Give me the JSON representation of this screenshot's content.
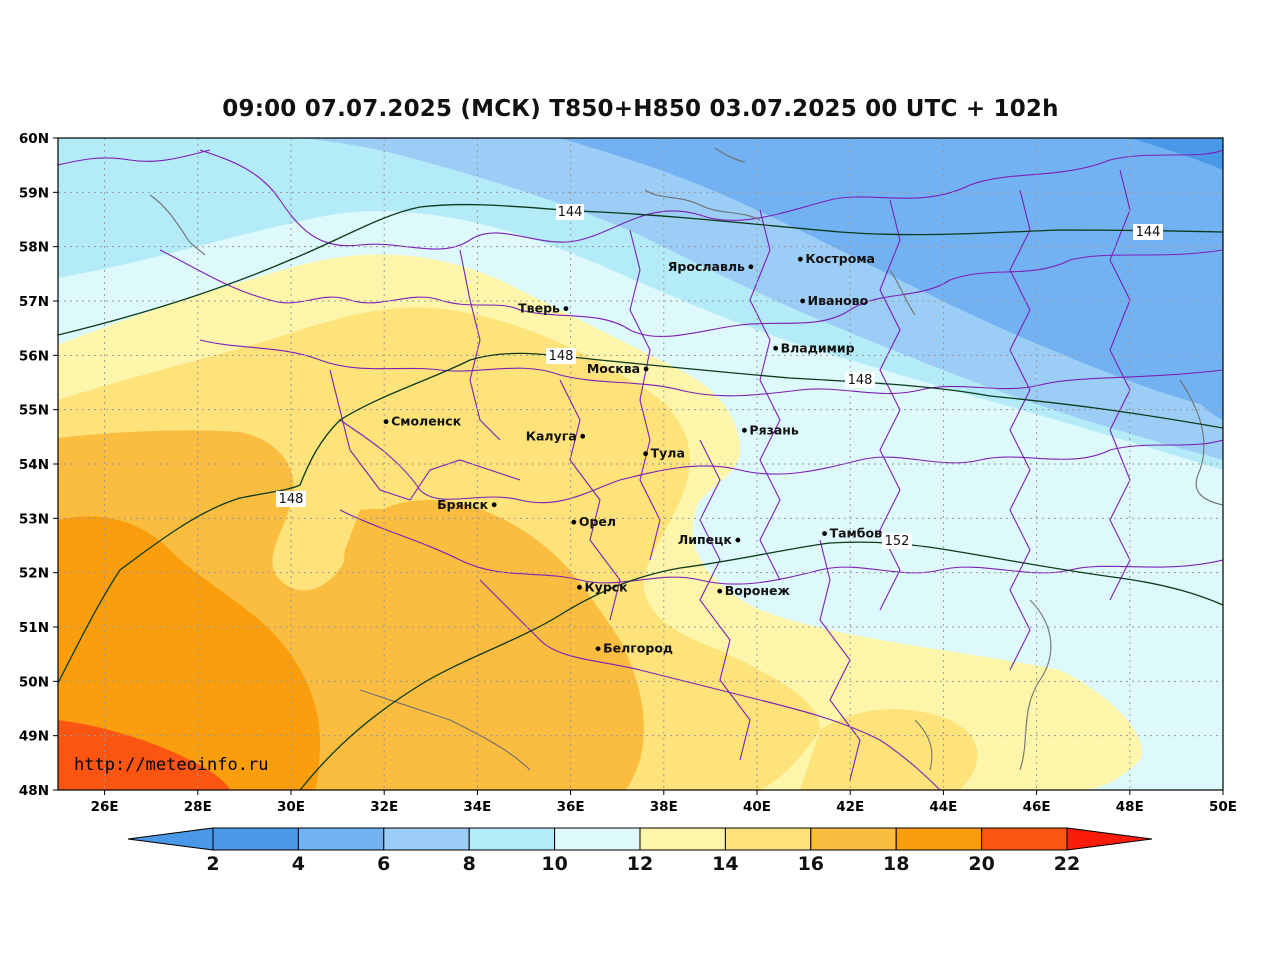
{
  "title": "09:00 07.07.2025 (МСК) T850+H850 03.07.2025 00 UTC + 102h",
  "credit": "http://meteoinfo.ru",
  "map": {
    "lon_range": [
      25,
      50
    ],
    "lat_range": [
      48,
      60
    ],
    "lon_ticks": [
      "26E",
      "28E",
      "30E",
      "32E",
      "34E",
      "36E",
      "38E",
      "40E",
      "42E",
      "44E",
      "46E",
      "48E",
      "50E"
    ],
    "lat_ticks": [
      "60N",
      "59N",
      "58N",
      "57N",
      "56N",
      "55N",
      "54N",
      "53N",
      "52N",
      "51N",
      "50N",
      "49N",
      "48N"
    ],
    "gridlines": true,
    "cities": [
      {
        "name": "Ярославль",
        "lon": 39.87,
        "lat": 57.63
      },
      {
        "name": "Кострома",
        "lon": 40.93,
        "lat": 57.77
      },
      {
        "name": "Иваново",
        "lon": 40.98,
        "lat": 57.0
      },
      {
        "name": "Тверь",
        "lon": 35.9,
        "lat": 56.86
      },
      {
        "name": "Владимир",
        "lon": 40.4,
        "lat": 56.13
      },
      {
        "name": "Москва",
        "lon": 37.62,
        "lat": 55.75
      },
      {
        "name": "Смоленск",
        "lon": 32.04,
        "lat": 54.78
      },
      {
        "name": "Рязань",
        "lon": 39.73,
        "lat": 54.62
      },
      {
        "name": "Калуга",
        "lon": 36.26,
        "lat": 54.51
      },
      {
        "name": "Тула",
        "lon": 37.61,
        "lat": 54.19
      },
      {
        "name": "Брянск",
        "lon": 34.36,
        "lat": 53.25
      },
      {
        "name": "Орел",
        "lon": 36.07,
        "lat": 52.93
      },
      {
        "name": "Липецк",
        "lon": 39.59,
        "lat": 52.6
      },
      {
        "name": "Тамбов",
        "lon": 41.45,
        "lat": 52.72
      },
      {
        "name": "Курск",
        "lon": 36.19,
        "lat": 51.73
      },
      {
        "name": "Воронеж",
        "lon": 39.2,
        "lat": 51.66
      },
      {
        "name": "Белгород",
        "lon": 36.59,
        "lat": 50.6
      }
    ],
    "isohypse_labels": [
      "144",
      "144",
      "148",
      "148",
      "148",
      "152"
    ]
  },
  "colorbar": {
    "labels": [
      "2",
      "4",
      "6",
      "8",
      "10",
      "12",
      "14",
      "16",
      "18",
      "20",
      "22"
    ],
    "colors": {
      "below_2": "#4a98e8",
      "2-4": "#4a98e8",
      "4-6": "#72b2f2",
      "6-8": "#9bcdf6",
      "8-10": "#b4ebf8",
      "10-12": "#def9fb",
      "12-14": "#fdf5aa",
      "14-16": "#fde37a",
      "16-18": "#fbbd40",
      "18-20": "#fb9e0d",
      "20-22": "#fb5611",
      "above_22": "#fb1d0a"
    }
  }
}
